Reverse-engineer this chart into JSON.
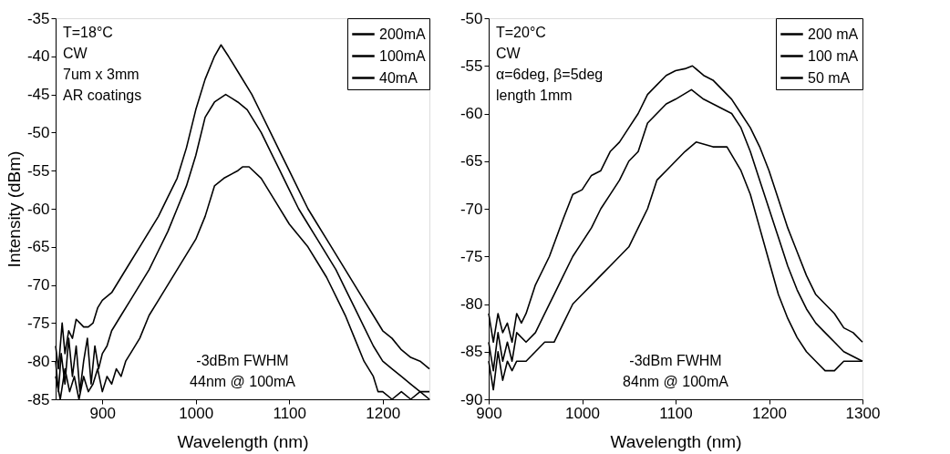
{
  "chart_data": [
    {
      "type": "line",
      "xlabel": "Wavelength (nm)",
      "ylabel": "Intensity (dBm)",
      "xlim": [
        850,
        1250
      ],
      "ylim": [
        -85,
        -35
      ],
      "xticks": [
        900,
        1000,
        1100,
        1200
      ],
      "yticks": [
        -85,
        -80,
        -75,
        -70,
        -65,
        -60,
        -55,
        -50,
        -45,
        -40,
        -35
      ],
      "legend": "top right",
      "grid": false,
      "line_style": "solid",
      "marker": "none",
      "annotations": [
        "T=18°C",
        "CW",
        "7um x 3mm",
        "AR coatings",
        "-3dBm FWHM",
        "44nm @ 100mA"
      ],
      "series": [
        {
          "name": "200mA",
          "color": "#000000",
          "x": [
            850,
            853,
            857,
            860,
            864,
            868,
            872,
            876,
            880,
            885,
            890,
            895,
            900,
            910,
            920,
            930,
            940,
            950,
            960,
            970,
            980,
            990,
            1000,
            1010,
            1020,
            1027,
            1035,
            1045,
            1060,
            1070,
            1080,
            1090,
            1100,
            1110,
            1120,
            1130,
            1140,
            1150,
            1160,
            1170,
            1180,
            1190,
            1200,
            1210,
            1220,
            1230,
            1240,
            1250
          ],
          "values": [
            -78,
            -81,
            -75,
            -79,
            -76,
            -77,
            -74.5,
            -75,
            -75.5,
            -75.5,
            -75,
            -73,
            -72,
            -71,
            -69,
            -67,
            -65,
            -63,
            -61,
            -58.5,
            -56,
            -52,
            -47,
            -43,
            -40,
            -38.5,
            -40,
            -42,
            -45,
            -47.5,
            -50,
            -52.5,
            -55,
            -57.5,
            -60,
            -62,
            -64,
            -66,
            -68,
            -70,
            -72,
            -74,
            -76,
            -77,
            -78.5,
            -79.5,
            -80,
            -81
          ]
        },
        {
          "name": "100mA",
          "color": "#000000",
          "x": [
            850,
            853,
            856,
            860,
            864,
            868,
            872,
            876,
            880,
            884,
            888,
            892,
            896,
            900,
            905,
            910,
            920,
            930,
            940,
            950,
            960,
            970,
            980,
            990,
            1000,
            1010,
            1020,
            1032,
            1045,
            1055,
            1070,
            1080,
            1090,
            1100,
            1110,
            1120,
            1130,
            1140,
            1150,
            1160,
            1170,
            1180,
            1190,
            1200,
            1210,
            1220,
            1230,
            1240,
            1250
          ],
          "values": [
            -80,
            -84,
            -79,
            -83,
            -77,
            -82,
            -78,
            -84,
            -80,
            -77,
            -83,
            -78,
            -81,
            -79,
            -78,
            -76,
            -74,
            -72,
            -70,
            -68,
            -65.5,
            -63,
            -60,
            -57,
            -53,
            -48,
            -46,
            -45,
            -46,
            -47,
            -50,
            -52.5,
            -55,
            -57.5,
            -60,
            -62,
            -64,
            -66,
            -68,
            -70.5,
            -73,
            -75.5,
            -78,
            -80,
            -81,
            -82,
            -83,
            -84,
            -84
          ]
        },
        {
          "name": "40mA",
          "color": "#000000",
          "x": [
            850,
            855,
            860,
            865,
            870,
            875,
            880,
            885,
            890,
            895,
            900,
            905,
            910,
            915,
            920,
            925,
            930,
            940,
            950,
            960,
            970,
            980,
            990,
            1000,
            1010,
            1020,
            1030,
            1045,
            1050,
            1057,
            1070,
            1085,
            1100,
            1110,
            1120,
            1130,
            1140,
            1150,
            1160,
            1170,
            1180,
            1190,
            1195,
            1200,
            1210,
            1220,
            1230,
            1240,
            1250
          ],
          "values": [
            -82,
            -85,
            -81,
            -84,
            -82,
            -85,
            -82,
            -84,
            -83,
            -81,
            -84,
            -82,
            -83,
            -81,
            -82,
            -80,
            -79,
            -77,
            -74,
            -72,
            -70,
            -68,
            -66,
            -64,
            -61,
            -57,
            -56,
            -55,
            -54.5,
            -54.5,
            -56,
            -59,
            -62,
            -63.5,
            -65,
            -67,
            -69,
            -71.5,
            -74,
            -77,
            -80,
            -82,
            -84,
            -84,
            -85,
            -84,
            -85,
            -84,
            -85
          ]
        }
      ]
    },
    {
      "type": "line",
      "xlabel": "Wavelength (nm)",
      "xlim": [
        900,
        1300
      ],
      "ylim": [
        -90,
        -50
      ],
      "xticks": [
        900,
        1000,
        1100,
        1200,
        1300
      ],
      "yticks": [
        -90,
        -85,
        -80,
        -75,
        -70,
        -65,
        -60,
        -55,
        -50
      ],
      "legend": "top right",
      "grid": false,
      "line_style": "solid",
      "marker": "none",
      "annotations": [
        "T=20°C",
        "CW",
        "α=6deg, β=5deg",
        "length 1mm",
        "-3dBm FWHM",
        "84nm @ 100mA"
      ],
      "series": [
        {
          "name": "200 mA",
          "color": "#000000",
          "x": [
            900,
            905,
            910,
            915,
            920,
            925,
            930,
            935,
            940,
            950,
            965,
            980,
            990,
            1000,
            1010,
            1020,
            1030,
            1040,
            1050,
            1060,
            1070,
            1080,
            1090,
            1100,
            1110,
            1118,
            1130,
            1140,
            1150,
            1160,
            1170,
            1180,
            1190,
            1200,
            1210,
            1220,
            1230,
            1240,
            1250,
            1260,
            1270,
            1280,
            1290,
            1300
          ],
          "values": [
            -81,
            -84,
            -81,
            -83,
            -82,
            -84,
            -81,
            -82,
            -81,
            -78,
            -75,
            -71,
            -68.5,
            -68,
            -66.5,
            -66,
            -64,
            -63,
            -61.5,
            -60,
            -58,
            -57,
            -56,
            -55.5,
            -55.3,
            -55,
            -56,
            -56.5,
            -57.5,
            -58.5,
            -60,
            -61.5,
            -63.5,
            -66,
            -69,
            -72,
            -74.5,
            -77,
            -79,
            -80,
            -81,
            -82.5,
            -83,
            -84
          ]
        },
        {
          "name": "100 mA",
          "color": "#000000",
          "x": [
            900,
            905,
            910,
            915,
            920,
            925,
            930,
            940,
            950,
            960,
            970,
            980,
            990,
            1000,
            1010,
            1020,
            1030,
            1040,
            1050,
            1060,
            1070,
            1080,
            1090,
            1100,
            1117,
            1130,
            1140,
            1150,
            1160,
            1170,
            1180,
            1190,
            1200,
            1210,
            1220,
            1230,
            1240,
            1250,
            1260,
            1270,
            1280,
            1290,
            1300
          ],
          "values": [
            -84,
            -87,
            -83,
            -86,
            -84,
            -86,
            -83,
            -84,
            -83,
            -81,
            -79,
            -77,
            -75,
            -73.5,
            -72,
            -70,
            -68.5,
            -67,
            -65,
            -64,
            -61,
            -60,
            -59,
            -58.5,
            -57.5,
            -58.5,
            -59,
            -59.5,
            -60,
            -61.5,
            -64,
            -67,
            -70,
            -73,
            -76,
            -78.5,
            -80.5,
            -82,
            -83,
            -84,
            -85,
            -85.5,
            -86
          ]
        },
        {
          "name": "50 mA",
          "color": "#000000",
          "x": [
            900,
            905,
            910,
            915,
            920,
            925,
            930,
            940,
            950,
            960,
            970,
            980,
            990,
            1000,
            1010,
            1020,
            1030,
            1040,
            1050,
            1060,
            1070,
            1080,
            1090,
            1100,
            1110,
            1122,
            1140,
            1155,
            1170,
            1180,
            1190,
            1200,
            1210,
            1220,
            1230,
            1240,
            1250,
            1260,
            1270,
            1280,
            1290,
            1300
          ],
          "values": [
            -86,
            -89,
            -85,
            -88,
            -86,
            -87,
            -86,
            -86,
            -85,
            -84,
            -84,
            -82,
            -80,
            -79,
            -78,
            -77,
            -76,
            -75,
            -74,
            -72,
            -70,
            -67,
            -66,
            -65,
            -64,
            -63,
            -63.5,
            -63.5,
            -66,
            -68.5,
            -72,
            -75.5,
            -79,
            -81.5,
            -83.5,
            -85,
            -86,
            -87,
            -87,
            -86,
            -86,
            -86
          ]
        }
      ]
    }
  ]
}
